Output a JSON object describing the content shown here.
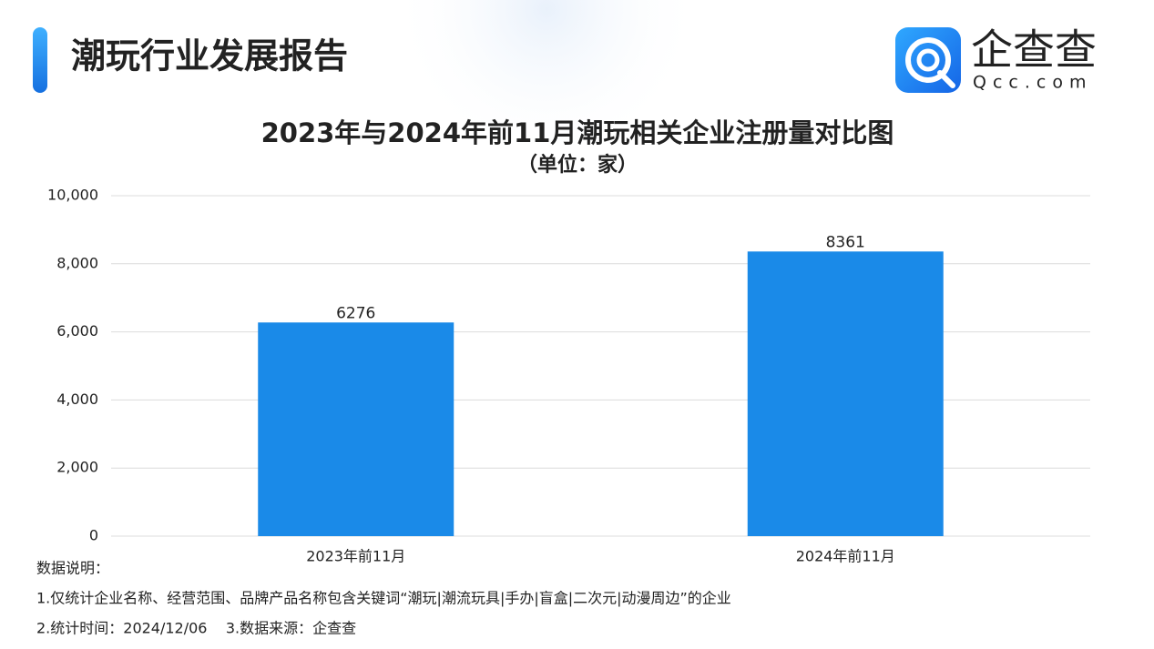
{
  "header": {
    "title": "潮玩行业发展报告",
    "logo_name": "企查查",
    "logo_domain": "Qcc.com"
  },
  "chart_data": {
    "type": "bar",
    "title": "2023年与2024年前11月潮玩相关企业注册量对比图",
    "subtitle": "（单位：家）",
    "categories": [
      "2023年前11月",
      "2024年前11月"
    ],
    "values": [
      6276,
      8361
    ],
    "color": "#1a8ae8",
    "ylim": [
      0,
      10000
    ],
    "yticks": [
      0,
      {
        "value": 2000,
        "label": "2,000"
      },
      {
        "value": 4000,
        "label": "4,000"
      },
      {
        "value": 6000,
        "label": "6,000"
      },
      {
        "value": 8000,
        "label": "8,000"
      },
      {
        "value": 10000,
        "label": "10,000"
      }
    ],
    "grid": true
  },
  "notes": [
    "数据说明：",
    "1.仅统计企业名称、经营范围、品牌产品名称包含关键词“潮玩|潮流玩具|手办|盲盒|二次元|动漫周边”的企业",
    "2.统计时间：2024/12/06    3.数据来源：企查查"
  ]
}
